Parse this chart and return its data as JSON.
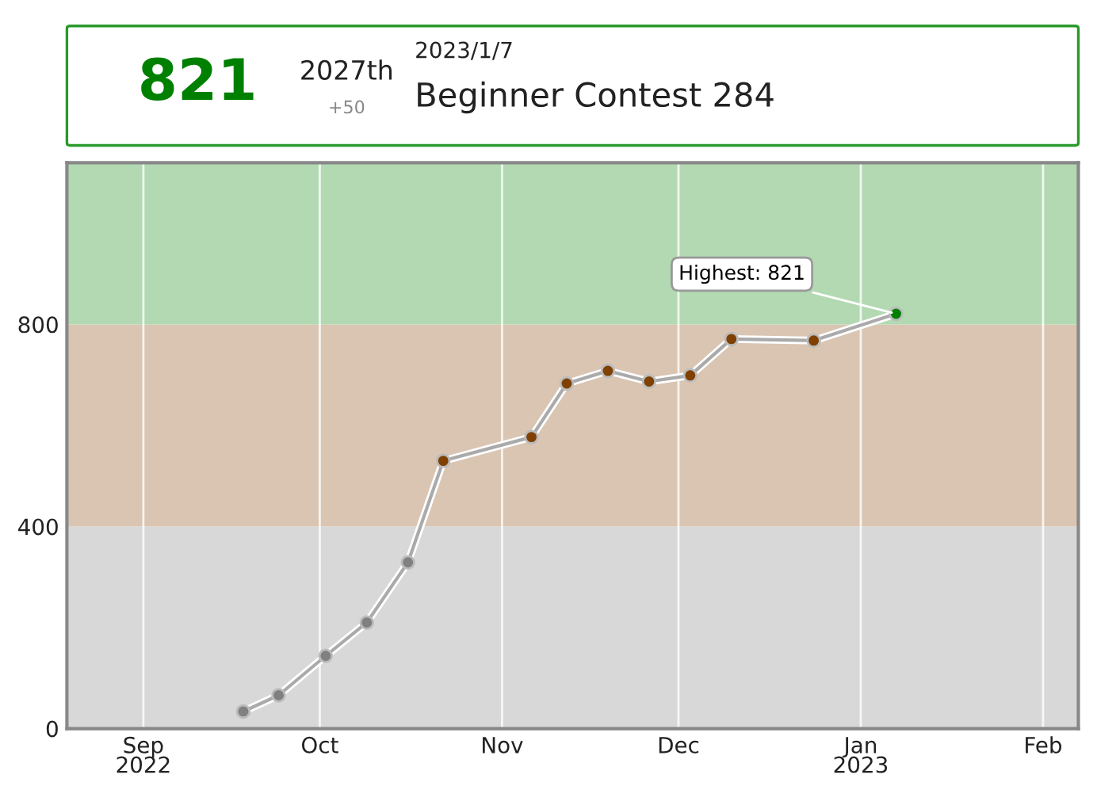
{
  "chart_data": {
    "type": "line",
    "x": [
      "2022-09-18",
      "2022-09-24",
      "2022-10-02",
      "2022-10-09",
      "2022-10-16",
      "2022-10-22",
      "2022-11-06",
      "2022-11-12",
      "2022-11-19",
      "2022-11-26",
      "2022-12-03",
      "2022-12-10",
      "2022-12-24",
      "2023-01-07"
    ],
    "series": [
      {
        "color": "#aaaaaa",
        "colors": [
          "#808080",
          "#808080",
          "#808080",
          "#808080",
          "#808080",
          "#804000",
          "#804000",
          "#804000",
          "#804000",
          "#804000",
          "#804000",
          "#804000",
          "#804000",
          "#008000"
        ],
        "values": [
          34,
          66,
          144,
          210,
          329,
          530,
          577,
          683,
          708,
          687,
          699,
          771,
          768,
          821
        ]
      }
    ],
    "marker": "circle",
    "line_style": "solid",
    "xlim": [
      "2022-08-19",
      "2023-02-07"
    ],
    "xticks": [
      {
        "value": "2022-09-01",
        "label": "Sep\n2022"
      },
      {
        "value": "2022-10-01",
        "label": "Oct"
      },
      {
        "value": "2022-11-01",
        "label": "Nov"
      },
      {
        "value": "2022-12-01",
        "label": "Dec"
      },
      {
        "value": "2023-01-01",
        "label": "Jan\n2023"
      },
      {
        "value": "2023-02-01",
        "label": "Feb"
      }
    ],
    "ylim": [
      0,
      1120
    ],
    "yticks": [
      0,
      400,
      800
    ],
    "grid": "x",
    "bands": [
      {
        "axis": "y",
        "from": 0,
        "to": 400,
        "color": "#d8d8d8"
      },
      {
        "axis": "y",
        "from": 400,
        "to": 800,
        "color": "#d9c5b2"
      },
      {
        "axis": "y",
        "from": 800,
        "to": 1120,
        "color": "#b2d9b2"
      }
    ],
    "annotations": [
      {
        "text": "Highest: 821",
        "x": "2023-01-07",
        "y": 821
      },
      "821",
      "2027th",
      "+50",
      "2023/1/7",
      "Beginner Contest 284"
    ]
  }
}
